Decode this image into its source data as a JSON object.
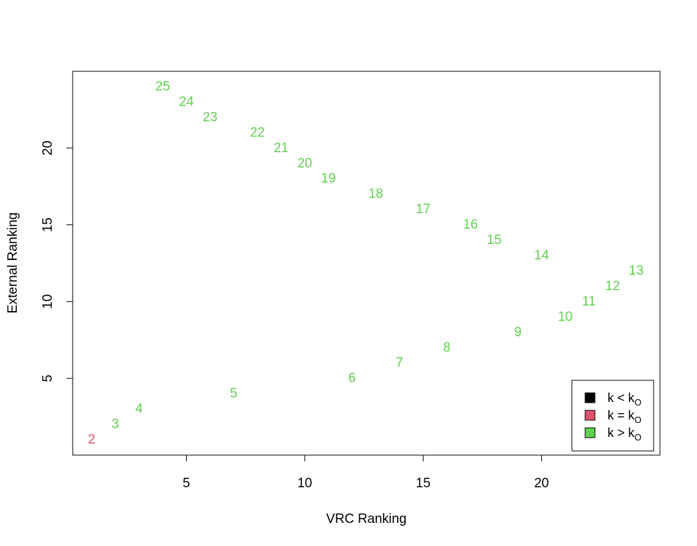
{
  "chart_data": {
    "type": "scatter",
    "title": "",
    "xlabel": "VRC Ranking",
    "ylabel": "External Ranking",
    "xlim": [
      0.2,
      25
    ],
    "ylim": [
      0,
      25
    ],
    "xticks": [
      5,
      10,
      15,
      20
    ],
    "yticks": [
      5,
      10,
      15,
      20
    ],
    "grid": false,
    "legend_position": "bottom-right",
    "legend": [
      {
        "label": "k < k",
        "sub": "O",
        "color": "#000000"
      },
      {
        "label": "k = k",
        "sub": "O",
        "color": "#DF536B"
      },
      {
        "label": "k > k",
        "sub": "O",
        "color": "#61D04F"
      }
    ],
    "points": [
      {
        "x": 1,
        "y": 1,
        "label": "2",
        "group": 1
      },
      {
        "x": 2,
        "y": 2,
        "label": "3",
        "group": 2
      },
      {
        "x": 3,
        "y": 3,
        "label": "4",
        "group": 2
      },
      {
        "x": 7,
        "y": 4,
        "label": "5",
        "group": 2
      },
      {
        "x": 12,
        "y": 5,
        "label": "6",
        "group": 2
      },
      {
        "x": 14,
        "y": 6,
        "label": "7",
        "group": 2
      },
      {
        "x": 16,
        "y": 7,
        "label": "8",
        "group": 2
      },
      {
        "x": 19,
        "y": 8,
        "label": "9",
        "group": 2
      },
      {
        "x": 21,
        "y": 9,
        "label": "10",
        "group": 2
      },
      {
        "x": 22,
        "y": 10,
        "label": "11",
        "group": 2
      },
      {
        "x": 23,
        "y": 11,
        "label": "12",
        "group": 2
      },
      {
        "x": 24,
        "y": 12,
        "label": "13",
        "group": 2
      },
      {
        "x": 20,
        "y": 13,
        "label": "14",
        "group": 2
      },
      {
        "x": 18,
        "y": 14,
        "label": "15",
        "group": 2
      },
      {
        "x": 17,
        "y": 15,
        "label": "16",
        "group": 2
      },
      {
        "x": 15,
        "y": 16,
        "label": "17",
        "group": 2
      },
      {
        "x": 13,
        "y": 17,
        "label": "18",
        "group": 2
      },
      {
        "x": 11,
        "y": 18,
        "label": "19",
        "group": 2
      },
      {
        "x": 10,
        "y": 19,
        "label": "20",
        "group": 2
      },
      {
        "x": 9,
        "y": 20,
        "label": "21",
        "group": 2
      },
      {
        "x": 8,
        "y": 21,
        "label": "22",
        "group": 2
      },
      {
        "x": 6,
        "y": 22,
        "label": "23",
        "group": 2
      },
      {
        "x": 5,
        "y": 23,
        "label": "24",
        "group": 2
      },
      {
        "x": 4,
        "y": 24,
        "label": "25",
        "group": 2
      }
    ]
  }
}
